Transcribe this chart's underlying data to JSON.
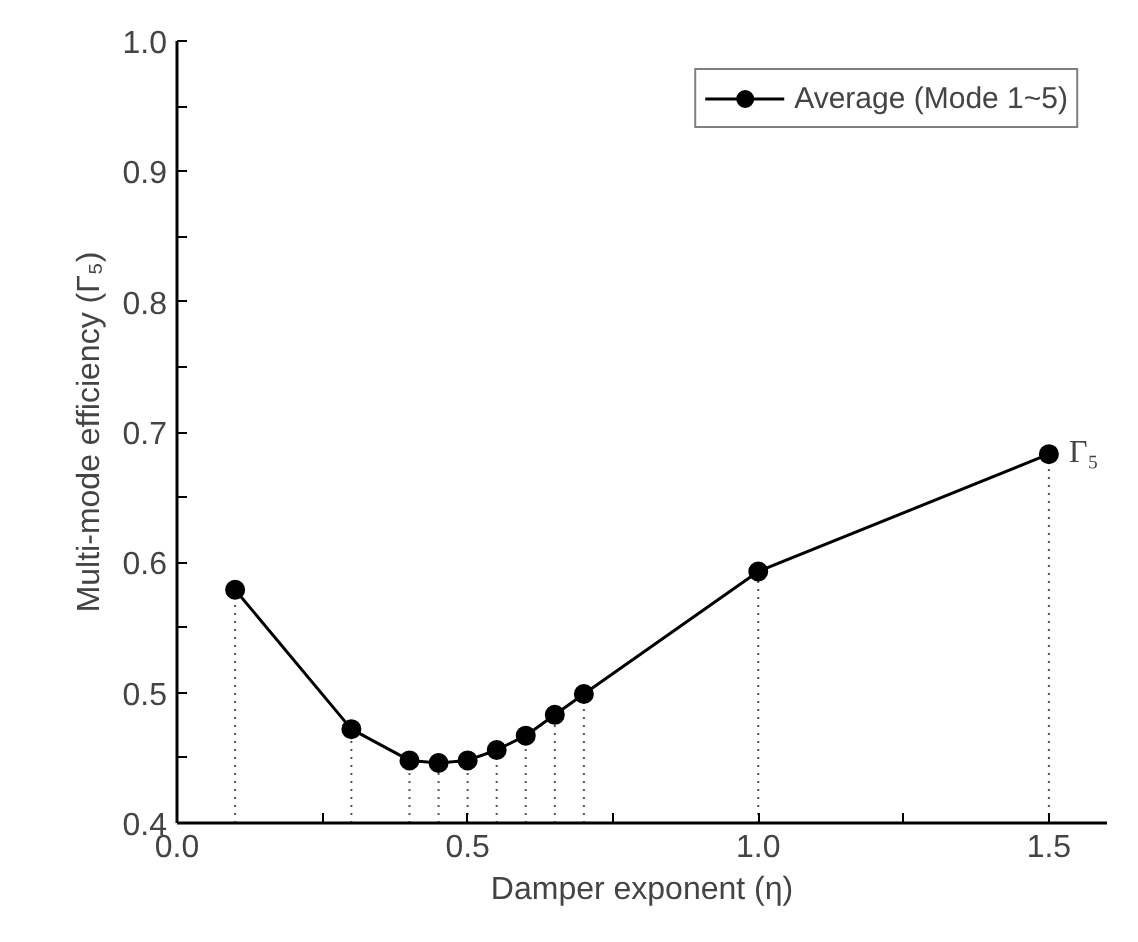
{
  "chart_data": {
    "type": "line",
    "xlabel": "Damper exponent (η)",
    "ylabel": "Multi-mode efficiency (Γ₅)",
    "x": [
      0.1,
      0.3,
      0.4,
      0.45,
      0.5,
      0.55,
      0.6,
      0.65,
      0.7,
      1.0,
      1.5
    ],
    "series": [
      {
        "name": "Average (Mode 1~5)",
        "color": "#000000",
        "values": [
          0.579,
          0.472,
          0.448,
          0.446,
          0.448,
          0.456,
          0.467,
          0.483,
          0.499,
          0.593,
          0.683
        ],
        "errors": [
          [
            0.4,
            0.579
          ],
          [
            0.4,
            0.472
          ],
          [
            0.4,
            0.448
          ],
          [
            0.4,
            0.446
          ],
          [
            0.4,
            0.448
          ],
          [
            0.4,
            0.456
          ],
          [
            0.4,
            0.467
          ],
          [
            0.4,
            0.483
          ],
          [
            0.4,
            0.499
          ],
          [
            0.4,
            0.593
          ],
          [
            0.4,
            0.683
          ]
        ]
      }
    ],
    "xlim": [
      0.0,
      1.6
    ],
    "xticks": [
      {
        "value": 0.0,
        "label": "0.0"
      },
      {
        "value": 0.25,
        "label": null
      },
      0.5,
      {
        "value": 0.75,
        "label": null
      },
      {
        "value": 1.0,
        "label": "1.0"
      },
      {
        "value": 1.25,
        "label": null
      },
      1.5
    ],
    "ylim": [
      0.4,
      1.0
    ],
    "yticks": [
      0.4,
      {
        "value": 0.45,
        "label": null
      },
      0.5,
      {
        "value": 0.55,
        "label": null
      },
      0.6,
      {
        "value": 0.65,
        "label": null
      },
      0.7,
      {
        "value": 0.75,
        "label": null
      },
      0.8,
      {
        "value": 0.85,
        "label": null
      },
      0.9,
      {
        "value": 0.95,
        "label": null
      },
      {
        "value": 1.0,
        "label": "1.0"
      }
    ],
    "annotations": [
      {
        "text": "Γ₅",
        "x": 1.5,
        "y": 0.683
      }
    ],
    "marker": "circle",
    "line_style": "solid",
    "legend": "top right",
    "grid": false
  }
}
